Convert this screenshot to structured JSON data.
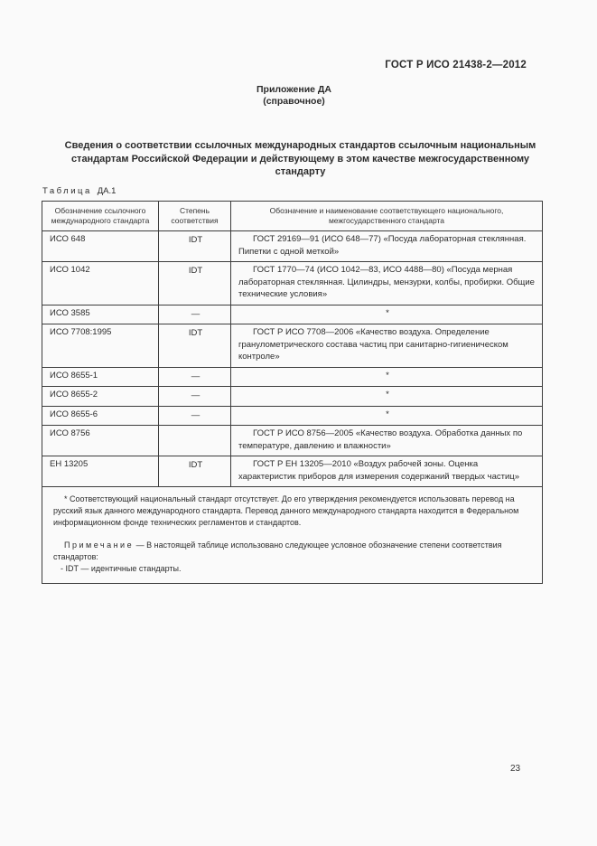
{
  "page": {
    "header_right": "ГОСТ Р ИСО 21438-2—2012",
    "appendix_title": "Приложение ДА",
    "appendix_subtitle": "(справочное)",
    "section_title": "Сведения о соответствии ссылочных международных стандартов ссылочным национальным стандартам Российской Федерации и действующему в этом качестве межгосударственному стандарту",
    "page_number": "23"
  },
  "table": {
    "caption_word": "Таблица",
    "caption_number": "ДА.1",
    "headers": [
      "Обозначение ссылочного международного стандарта",
      "Степень соответствия",
      "Обозначение и наименование соответствующего национального, межгосударственного стандарта"
    ],
    "rows": [
      {
        "ref": "ИСО  648",
        "degree": "IDT",
        "national": "ГОСТ  29169—91 (ИСО 648—77) «Посуда лабораторная стеклянная. Пипетки с одной меткой»"
      },
      {
        "ref": "ИСО  1042",
        "degree": "IDT",
        "national": "ГОСТ  1770—74 (ИСО 1042—83, ИСО 4488—80) «Посуда мерная лабораторная стеклянная. Цилиндры, мензурки, колбы, пробирки. Общие технические условия»"
      },
      {
        "ref": "ИСО  3585",
        "degree": "—",
        "national": "*"
      },
      {
        "ref": "ИСО  7708:1995",
        "degree": "IDT",
        "national": "ГОСТ Р ИСО 7708—2006 «Качество воздуха. Определение гранулометрического состава частиц при санитарно-гигиеническом контроле»"
      },
      {
        "ref": "ИСО  8655-1",
        "degree": "—",
        "national": "*"
      },
      {
        "ref": "ИСО  8655-2",
        "degree": "—",
        "national": "*"
      },
      {
        "ref": "ИСО 8655-6",
        "degree": "—",
        "national": "*"
      },
      {
        "ref": "ИСО  8756",
        "degree": "",
        "national": "ГОСТ  Р ИСО 8756—2005 «Качество воздуха. Обработка данных по температуре, давлению и влажности»"
      },
      {
        "ref": "ЕН  13205",
        "degree": "IDT",
        "national": "ГОСТ  Р ЕН 13205—2010 «Воздух рабочей зоны. Оценка характеристик приборов для измерения содержаний твердых частиц»"
      }
    ],
    "footnote": "*  Соответствующий национальный стандарт отсутствует. До его утверждения рекомендуется использовать перевод на русский язык данного международного стандарта. Перевод данного международного стандарта находится в Федеральном информационном фонде технических регламентов и стандартов.",
    "note_label": "Примечание",
    "note_text": "— В настоящей таблице использовано следующее условное обозначение степени соответствия стандартов:",
    "note_item": "-  IDT — идентичные стандарты."
  },
  "colors": {
    "background": "#fafafa",
    "text": "#2b2b2b",
    "border": "#3c3c3c"
  }
}
